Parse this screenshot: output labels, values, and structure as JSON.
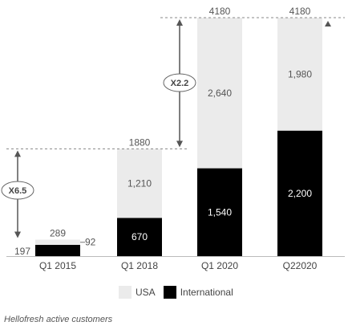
{
  "chart_data": {
    "type": "bar",
    "stacked": true,
    "categories": [
      "Q1 2015",
      "Q1 2018",
      "Q1 2020",
      "Q22020"
    ],
    "series": [
      {
        "name": "International",
        "values": [
          197,
          670,
          1540,
          2200
        ],
        "color": "#000000"
      },
      {
        "name": "USA",
        "values": [
          92,
          1210,
          2640,
          1980
        ],
        "color": "#ebebeb"
      }
    ],
    "totals": [
      289,
      1880,
      4180,
      4180
    ],
    "ylim": [
      0,
      4180
    ],
    "grid": false,
    "legend_position": "bottom",
    "annotations": [
      {
        "text": "X6.5",
        "from_category": "Q1 2015",
        "to_category": "Q1 2018"
      },
      {
        "text": "X2.2",
        "from_category": "Q1 2018",
        "to_category": "Q1 2020"
      }
    ]
  },
  "legend": {
    "usa": "USA",
    "international": "International"
  },
  "caption": "Hellofresh active customers"
}
